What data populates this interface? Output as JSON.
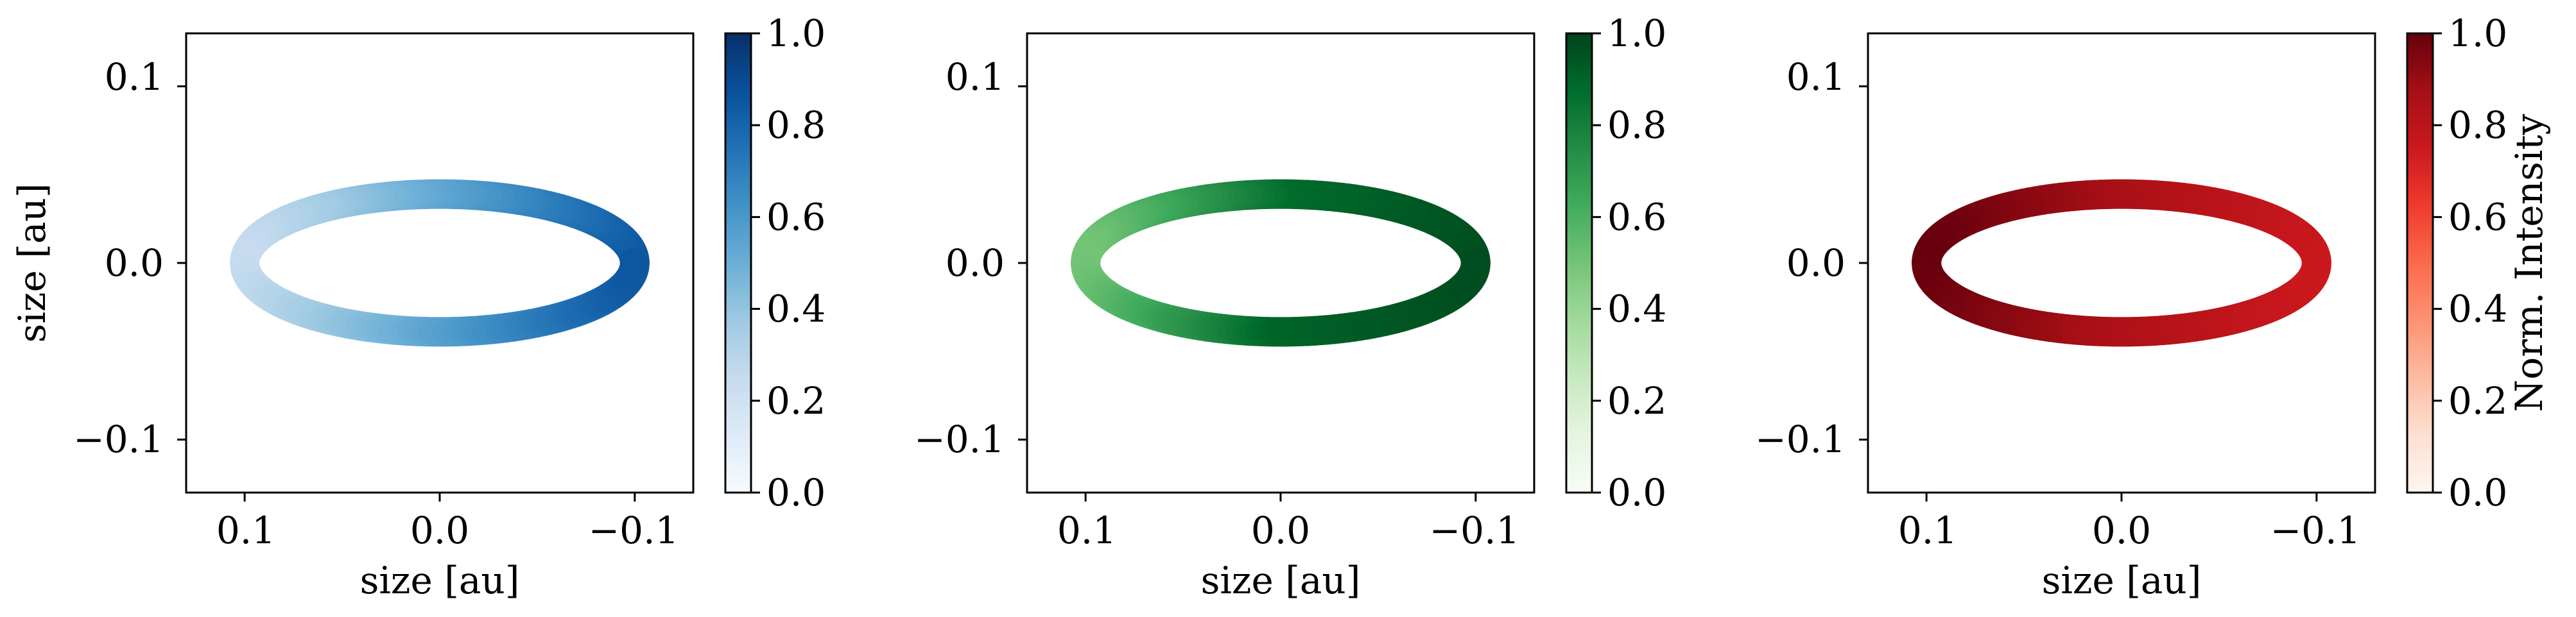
{
  "chart_data": [
    {
      "type": "scatter",
      "title": "",
      "xlabel": "size [au]",
      "ylabel": "size [au]",
      "xlim": [
        0.13,
        -0.13
      ],
      "ylim": [
        -0.13,
        0.13
      ],
      "xticks": [
        0.1,
        0.0,
        -0.1
      ],
      "xtick_labels": [
        "0.1",
        "0.0",
        "−0.1"
      ],
      "yticks": [
        0.1,
        0.0,
        -0.1
      ],
      "ytick_labels": [
        "0.1",
        "0.0",
        "−0.1"
      ],
      "ring": {
        "semi_major_au": 0.1,
        "semi_minor_au": 0.039
      },
      "intensity": {
        "right_edge": 0.85,
        "top": 0.55,
        "bottom": 0.55,
        "left_edge": 0.25
      },
      "colorbar": {
        "colormap": "Blues",
        "range": [
          0.0,
          1.0
        ],
        "ticks": [
          0.0,
          0.2,
          0.4,
          0.6,
          0.8,
          1.0
        ],
        "tick_labels": [
          "0.0",
          "0.2",
          "0.4",
          "0.6",
          "0.8",
          "1.0"
        ],
        "label": ""
      }
    },
    {
      "type": "scatter",
      "title": "",
      "xlabel": "size [au]",
      "ylabel": "",
      "xlim": [
        0.13,
        -0.13
      ],
      "ylim": [
        -0.13,
        0.13
      ],
      "xticks": [
        0.1,
        0.0,
        -0.1
      ],
      "xtick_labels": [
        "0.1",
        "0.0",
        "−0.1"
      ],
      "yticks": [
        0.1,
        0.0,
        -0.1
      ],
      "ytick_labels": [
        "0.1",
        "0.0",
        "−0.1"
      ],
      "ring": {
        "semi_major_au": 0.1,
        "semi_minor_au": 0.039
      },
      "intensity": {
        "right_edge": 0.97,
        "top": 0.88,
        "bottom": 0.9,
        "left_edge": 0.5
      },
      "colorbar": {
        "colormap": "Greens",
        "range": [
          0.0,
          1.0
        ],
        "ticks": [
          0.0,
          0.2,
          0.4,
          0.6,
          0.8,
          1.0
        ],
        "tick_labels": [
          "0.0",
          "0.2",
          "0.4",
          "0.6",
          "0.8",
          "1.0"
        ],
        "label": ""
      }
    },
    {
      "type": "scatter",
      "title": "",
      "xlabel": "size [au]",
      "ylabel": "",
      "xlim": [
        0.13,
        -0.13
      ],
      "ylim": [
        -0.13,
        0.13
      ],
      "xticks": [
        0.1,
        0.0,
        -0.1
      ],
      "xtick_labels": [
        "0.1",
        "0.0",
        "−0.1"
      ],
      "yticks": [
        0.1,
        0.0,
        -0.1
      ],
      "ytick_labels": [
        "0.1",
        "0.0",
        "−0.1"
      ],
      "ring": {
        "semi_major_au": 0.1,
        "semi_minor_au": 0.039
      },
      "intensity": {
        "right_edge": 0.75,
        "top": 0.85,
        "bottom": 0.85,
        "left_edge": 1.0
      },
      "colorbar": {
        "colormap": "Reds",
        "range": [
          0.0,
          1.0
        ],
        "ticks": [
          0.0,
          0.2,
          0.4,
          0.6,
          0.8,
          1.0
        ],
        "tick_labels": [
          "0.0",
          "0.2",
          "0.4",
          "0.6",
          "0.8",
          "1.0"
        ],
        "label": "Norm. Intensity"
      }
    }
  ],
  "colormaps": {
    "Blues": [
      "#f7fbff",
      "#deebf7",
      "#c6dbef",
      "#9ecae1",
      "#6baed6",
      "#4292c6",
      "#2171b5",
      "#08519c",
      "#08306b"
    ],
    "Greens": [
      "#f7fcf5",
      "#e5f5e0",
      "#c7e9c0",
      "#a1d99b",
      "#74c476",
      "#41ab5d",
      "#238b45",
      "#006d2c",
      "#00441b"
    ],
    "Reds": [
      "#fff5f0",
      "#fee0d2",
      "#fcbba1",
      "#fc9272",
      "#fb6a4a",
      "#ef3b2c",
      "#cb181d",
      "#a50f15",
      "#67000d"
    ]
  }
}
